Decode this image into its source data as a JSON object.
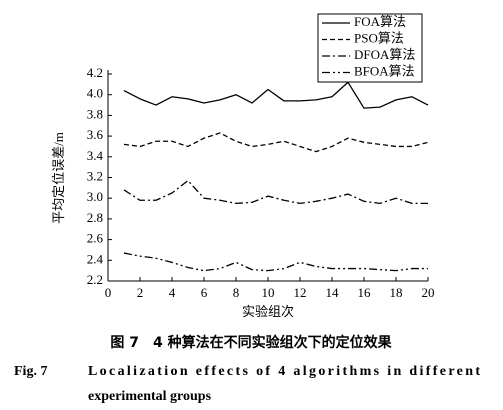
{
  "chart_data": {
    "type": "line",
    "xlabel": "实验组次",
    "ylabel": "平均定位误差/m",
    "x": [
      1,
      2,
      3,
      4,
      5,
      6,
      7,
      8,
      9,
      10,
      11,
      12,
      13,
      14,
      15,
      16,
      17,
      18,
      19,
      20
    ],
    "series": [
      {
        "name": "FOA算法",
        "color": "#000000",
        "dash": "solid",
        "values": [
          4.04,
          3.96,
          3.9,
          3.98,
          3.96,
          3.92,
          3.95,
          4.0,
          3.92,
          4.05,
          3.94,
          3.94,
          3.95,
          3.98,
          4.12,
          3.87,
          3.88,
          3.95,
          3.98,
          3.9
        ]
      },
      {
        "name": "PSO算法",
        "color": "#000000",
        "dash": "dashed",
        "values": [
          3.52,
          3.5,
          3.55,
          3.55,
          3.5,
          3.58,
          3.63,
          3.55,
          3.5,
          3.52,
          3.55,
          3.5,
          3.45,
          3.5,
          3.58,
          3.54,
          3.52,
          3.5,
          3.5,
          3.54
        ]
      },
      {
        "name": "DFOA算法",
        "color": "#000000",
        "dash": "dashdot",
        "values": [
          3.08,
          2.98,
          2.98,
          3.05,
          3.17,
          3.0,
          2.98,
          2.95,
          2.96,
          3.02,
          2.98,
          2.95,
          2.97,
          3.0,
          3.04,
          2.97,
          2.95,
          3.0,
          2.95,
          2.95
        ]
      },
      {
        "name": "BFOA算法",
        "color": "#000000",
        "dash": "dashdotdot",
        "values": [
          2.47,
          2.44,
          2.42,
          2.38,
          2.33,
          2.3,
          2.32,
          2.38,
          2.31,
          2.3,
          2.32,
          2.38,
          2.34,
          2.32,
          2.32,
          2.32,
          2.31,
          2.3,
          2.32,
          2.32
        ]
      }
    ],
    "xlim": [
      0,
      20
    ],
    "xticks": [
      0,
      2,
      4,
      6,
      8,
      10,
      12,
      14,
      16,
      18,
      20
    ],
    "ylim": [
      2.2,
      4.2
    ],
    "yticks": [
      2.2,
      2.4,
      2.6,
      2.8,
      {
        "value": 3.0,
        "label": "3.0"
      },
      3.2,
      3.4,
      3.6,
      3.8,
      {
        "value": 4.0,
        "label": "4.0"
      },
      4.2
    ],
    "grid": false,
    "legend": "upper right",
    "caption_cn": "图 7　4 种算法在不同实验组次下的定位效果",
    "caption_en_label": "Fig. 7",
    "caption_en": [
      "Localization effects of 4 algorithms in different",
      "experimental groups"
    ]
  }
}
